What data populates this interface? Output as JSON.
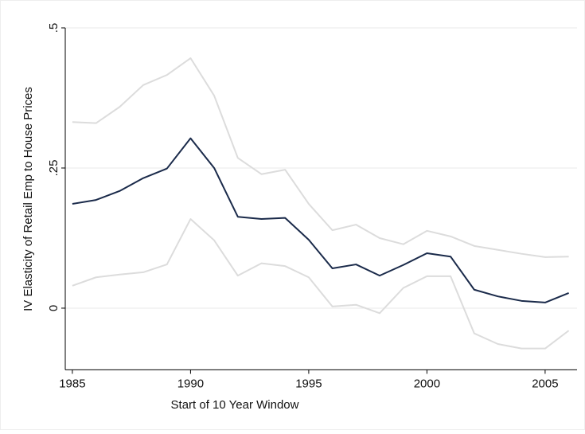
{
  "chart_data": {
    "type": "line",
    "xlabel": "Start of 10 Year Window",
    "ylabel": "IV Elasticity of Retail Emp to House Prices",
    "x": [
      1985,
      1986,
      1987,
      1988,
      1989,
      1990,
      1991,
      1992,
      1993,
      1994,
      1995,
      1996,
      1997,
      1998,
      1999,
      2000,
      2001,
      2002,
      2003,
      2004,
      2005,
      2006
    ],
    "series": [
      {
        "color": "#dcdcdc",
        "values": [
          0.332,
          0.33,
          0.359,
          0.398,
          0.416,
          0.446,
          0.379,
          0.268,
          0.239,
          0.247,
          0.186,
          0.139,
          0.149,
          0.125,
          0.114,
          0.138,
          0.128,
          0.111,
          0.104,
          0.097,
          0.091,
          0.092
        ]
      },
      {
        "color": "#dcdcdc",
        "values": [
          0.04,
          0.055,
          0.06,
          0.064,
          0.078,
          0.159,
          0.121,
          0.058,
          0.08,
          0.075,
          0.055,
          0.003,
          0.006,
          -0.009,
          0.036,
          0.057,
          0.057,
          -0.045,
          -0.064,
          -0.072,
          -0.072,
          -0.04
        ]
      },
      {
        "color": "#1a2a4a",
        "values": [
          0.186,
          0.193,
          0.209,
          0.232,
          0.249,
          0.303,
          0.25,
          0.163,
          0.159,
          0.161,
          0.122,
          0.071,
          0.078,
          0.058,
          0.077,
          0.098,
          0.092,
          0.033,
          0.021,
          0.013,
          0.01,
          0.027
        ]
      }
    ],
    "xlim": [
      1984.7,
      2006.35
    ],
    "ylim": [
      -0.11,
      0.5
    ],
    "xticks": [
      1985,
      1990,
      1995,
      2000,
      2005
    ],
    "yticks": [
      0,
      {
        "value": 0.25,
        "label": ".25"
      },
      {
        "value": 0.5,
        "label": ".5"
      }
    ],
    "grid": true
  }
}
